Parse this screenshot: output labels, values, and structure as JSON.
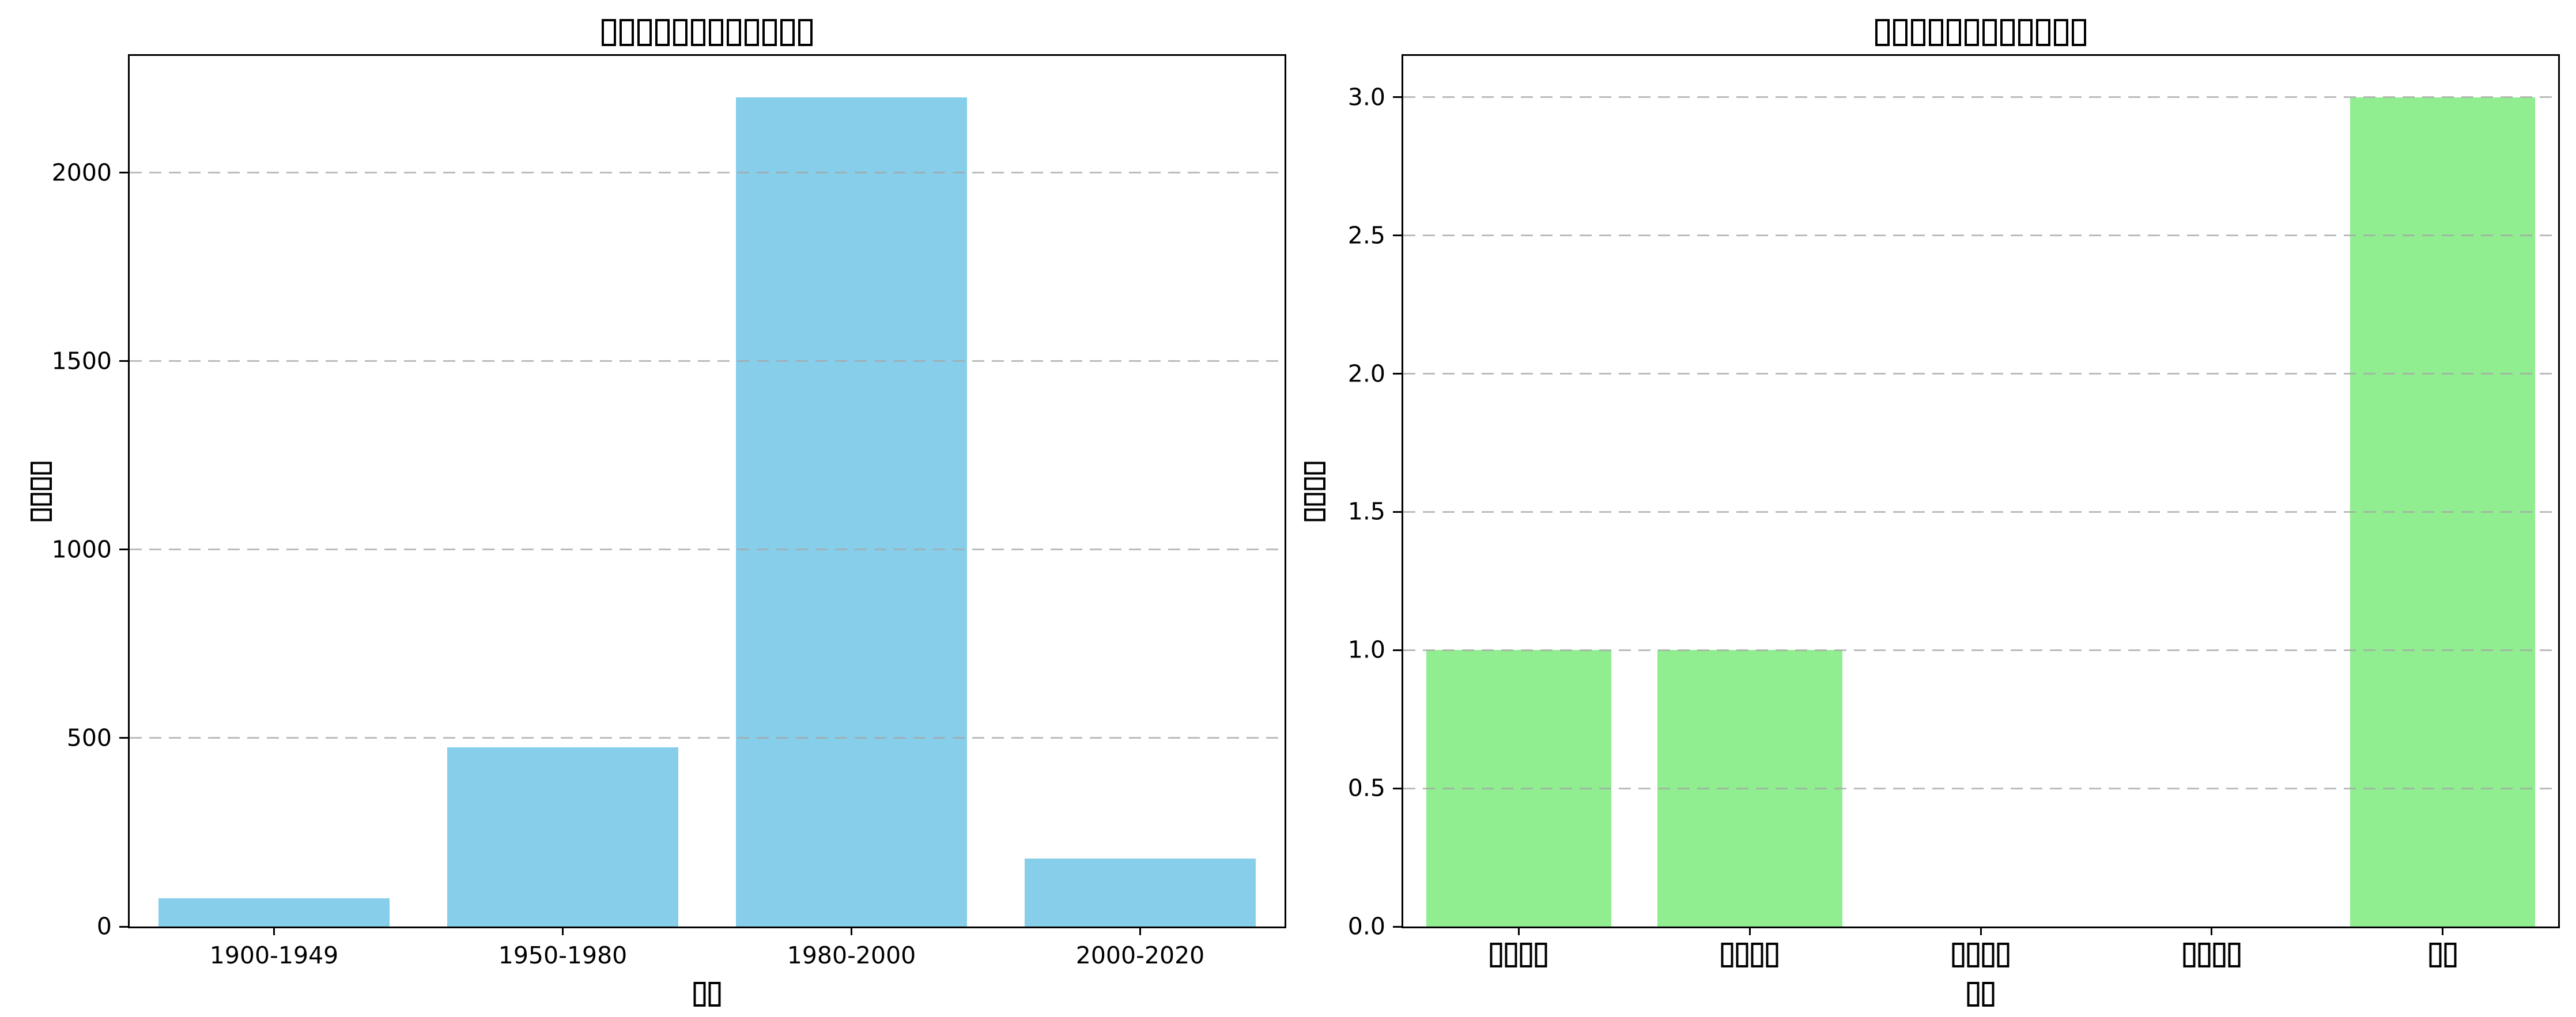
{
  "figure": {
    "background": "#ffffff",
    "note": "All CJK text in the source image is rendered as hollow missing-glyph (tofu) boxes"
  },
  "chart_data": [
    {
      "type": "bar",
      "panel": "left",
      "title": {
        "missing_glyph_boxes": 12
      },
      "categories": [
        "1900-1949",
        "1950-1980",
        "1980-2000",
        "2000-2020"
      ],
      "values": [
        75,
        475,
        2200,
        180
      ],
      "bar_color": "#87CEEB",
      "ylim": [
        0,
        2310
      ],
      "ytick_values": [
        0,
        500,
        1000,
        1500,
        2000
      ],
      "ytick_labels": [
        "0",
        "500",
        "1000",
        "1500",
        "2000"
      ],
      "xlabel": {
        "missing_glyph_boxes": 2
      },
      "ylabel": {
        "missing_glyph_boxes": 4
      },
      "grid": {
        "axis": "y",
        "style": "dashed",
        "color": "#c7c7c7",
        "over_bars": true
      },
      "bar_width_fraction": 0.8
    },
    {
      "type": "bar",
      "panel": "right",
      "title": {
        "missing_glyph_boxes": 12
      },
      "categories_missing_glyph_boxes": [
        4,
        4,
        4,
        4,
        2
      ],
      "values": [
        1,
        1,
        0,
        0,
        3
      ],
      "bar_color": "#90EE90",
      "ylim": [
        0,
        3.15
      ],
      "ytick_values": [
        0,
        0.5,
        1.0,
        1.5,
        2.0,
        2.5,
        3.0
      ],
      "ytick_labels": [
        "0.0",
        "0.5",
        "1.0",
        "1.5",
        "2.0",
        "2.5",
        "3.0"
      ],
      "xlabel": {
        "missing_glyph_boxes": 2
      },
      "ylabel": {
        "missing_glyph_boxes": 4
      },
      "grid": {
        "axis": "y",
        "style": "dashed",
        "color": "#c7c7c7",
        "over_bars": true
      },
      "bar_width_fraction": 0.8
    }
  ]
}
